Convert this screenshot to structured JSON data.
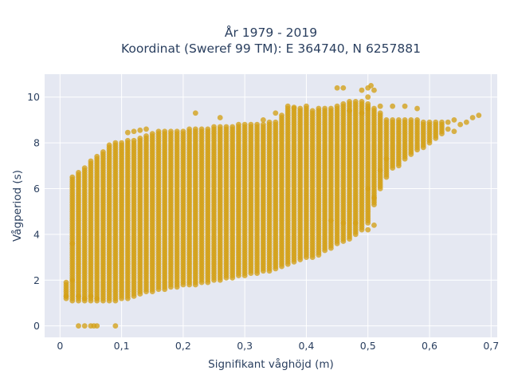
{
  "chart_data": {
    "type": "scatter",
    "title_line1": "År 1979 - 2019",
    "title_line2": "Koordinat (Sweref 99 TM): E 364740, N 6257881",
    "xlabel": "Signifikant våghöjd (m)",
    "ylabel": "Vågperiod (s)",
    "xlim": [
      -0.025,
      0.71
    ],
    "ylim": [
      -0.5,
      11
    ],
    "x_ticks": [
      0,
      0.1,
      0.2,
      0.3,
      0.4,
      0.5,
      0.6,
      0.7
    ],
    "x_tick_labels": [
      "0",
      "0,1",
      "0,2",
      "0,3",
      "0,4",
      "0,5",
      "0,6",
      "0,7"
    ],
    "y_ticks": [
      0,
      2,
      4,
      6,
      8,
      10
    ],
    "y_tick_labels": [
      "0",
      "2",
      "4",
      "6",
      "8",
      "10"
    ],
    "grid": true,
    "colors": {
      "marker": "#d4a017",
      "plot_bg": "#e5e8f2",
      "grid": "#ffffff",
      "text": "#2a3f5f"
    },
    "series": [
      {
        "columns": [
          [
            0.01,
            1.2,
            1.9
          ],
          [
            0.02,
            1.1,
            6.5
          ],
          [
            0.03,
            1.1,
            6.7
          ],
          [
            0.04,
            1.1,
            6.9
          ],
          [
            0.05,
            1.1,
            7.2
          ],
          [
            0.06,
            1.1,
            7.4
          ],
          [
            0.07,
            1.1,
            7.6
          ],
          [
            0.08,
            1.1,
            7.9
          ],
          [
            0.09,
            1.1,
            8.0
          ],
          [
            0.1,
            1.2,
            8.0
          ],
          [
            0.11,
            1.2,
            8.1
          ],
          [
            0.12,
            1.3,
            8.1
          ],
          [
            0.13,
            1.4,
            8.2
          ],
          [
            0.14,
            1.5,
            8.3
          ],
          [
            0.15,
            1.5,
            8.4
          ],
          [
            0.16,
            1.6,
            8.5
          ],
          [
            0.17,
            1.6,
            8.5
          ],
          [
            0.18,
            1.7,
            8.5
          ],
          [
            0.19,
            1.7,
            8.5
          ],
          [
            0.2,
            1.8,
            8.5
          ],
          [
            0.21,
            1.8,
            8.6
          ],
          [
            0.22,
            1.8,
            8.6
          ],
          [
            0.23,
            1.9,
            8.6
          ],
          [
            0.24,
            1.9,
            8.6
          ],
          [
            0.25,
            2.0,
            8.7
          ],
          [
            0.26,
            2.0,
            8.7
          ],
          [
            0.27,
            2.1,
            8.7
          ],
          [
            0.28,
            2.1,
            8.7
          ],
          [
            0.29,
            2.2,
            8.8
          ],
          [
            0.3,
            2.2,
            8.8
          ],
          [
            0.31,
            2.3,
            8.8
          ],
          [
            0.32,
            2.3,
            8.8
          ],
          [
            0.33,
            2.4,
            8.8
          ],
          [
            0.34,
            2.4,
            8.9
          ],
          [
            0.35,
            2.5,
            8.9
          ],
          [
            0.36,
            2.6,
            9.2
          ],
          [
            0.37,
            2.7,
            9.5
          ],
          [
            0.38,
            2.8,
            9.5
          ],
          [
            0.39,
            2.9,
            9.5
          ],
          [
            0.4,
            3.0,
            9.5
          ],
          [
            0.41,
            3.0,
            9.4
          ],
          [
            0.42,
            3.1,
            9.5
          ],
          [
            0.43,
            3.3,
            9.5
          ],
          [
            0.44,
            3.4,
            9.5
          ],
          [
            0.45,
            3.6,
            9.6
          ],
          [
            0.46,
            3.7,
            9.7
          ],
          [
            0.47,
            3.8,
            9.8
          ],
          [
            0.48,
            4.0,
            9.8
          ],
          [
            0.49,
            4.2,
            9.8
          ],
          [
            0.5,
            4.5,
            9.7
          ],
          [
            0.51,
            5.3,
            9.5
          ],
          [
            0.52,
            6.0,
            9.3
          ],
          [
            0.53,
            6.5,
            9.0
          ],
          [
            0.54,
            6.9,
            9.0
          ],
          [
            0.55,
            7.0,
            9.0
          ],
          [
            0.56,
            7.3,
            9.0
          ],
          [
            0.57,
            7.5,
            9.0
          ],
          [
            0.58,
            7.7,
            9.0
          ],
          [
            0.59,
            7.8,
            8.9
          ],
          [
            0.6,
            8.0,
            8.9
          ],
          [
            0.61,
            8.2,
            8.9
          ],
          [
            0.62,
            8.4,
            8.9
          ]
        ],
        "points": [
          [
            0.03,
            0
          ],
          [
            0.04,
            0
          ],
          [
            0.05,
            0
          ],
          [
            0.055,
            0
          ],
          [
            0.06,
            0
          ],
          [
            0.09,
            0
          ],
          [
            0.01,
            1.3
          ],
          [
            0.02,
            2.0
          ],
          [
            0.02,
            3.6
          ],
          [
            0.11,
            8.45
          ],
          [
            0.12,
            8.5
          ],
          [
            0.13,
            8.55
          ],
          [
            0.14,
            8.6
          ],
          [
            0.22,
            9.3
          ],
          [
            0.26,
            9.1
          ],
          [
            0.33,
            9.0
          ],
          [
            0.35,
            9.3
          ],
          [
            0.37,
            9.6
          ],
          [
            0.38,
            9.55
          ],
          [
            0.4,
            9.6
          ],
          [
            0.45,
            10.4
          ],
          [
            0.46,
            10.4
          ],
          [
            0.49,
            10.3
          ],
          [
            0.5,
            10.4
          ],
          [
            0.505,
            10.5
          ],
          [
            0.5,
            10.0
          ],
          [
            0.51,
            10.3
          ],
          [
            0.5,
            9.5
          ],
          [
            0.52,
            9.6
          ],
          [
            0.54,
            9.6
          ],
          [
            0.56,
            9.6
          ],
          [
            0.58,
            9.5
          ],
          [
            0.47,
            9.4
          ],
          [
            0.49,
            9.3
          ],
          [
            0.44,
            4.6
          ],
          [
            0.46,
            4.5
          ],
          [
            0.48,
            4.5
          ],
          [
            0.5,
            4.2
          ],
          [
            0.51,
            4.4
          ],
          [
            0.5,
            6.0
          ],
          [
            0.51,
            5.6
          ],
          [
            0.52,
            6.8
          ],
          [
            0.53,
            7.3
          ],
          [
            0.63,
            8.9
          ],
          [
            0.65,
            8.8
          ],
          [
            0.64,
            9.0
          ],
          [
            0.67,
            9.1
          ],
          [
            0.68,
            9.2
          ],
          [
            0.64,
            8.5
          ],
          [
            0.63,
            8.6
          ],
          [
            0.66,
            8.9
          ],
          [
            0.03,
            1.3
          ],
          [
            0.04,
            1.2
          ],
          [
            0.05,
            1.3
          ],
          [
            0.06,
            1.2
          ]
        ]
      }
    ]
  }
}
